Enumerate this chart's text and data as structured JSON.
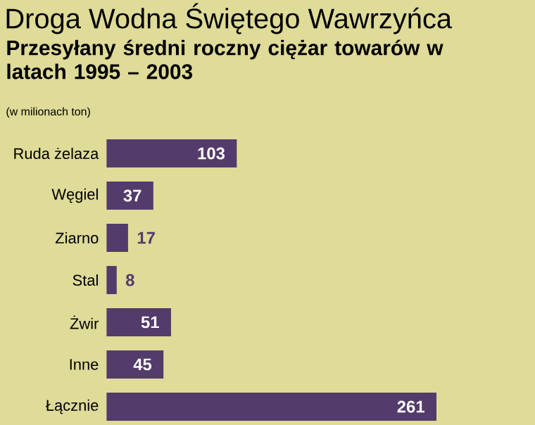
{
  "chart_data": {
    "type": "bar",
    "orientation": "horizontal",
    "title": "Droga Wodna Świętego Wawrzyńca",
    "subtitle": "Przesyłany średni roczny ciężar towarów w latach 1995 – 2003",
    "annotations": [
      "(w milionach ton)"
    ],
    "categories": [
      "Ruda żelaza",
      "Węgiel",
      "Ziarno",
      "Stal",
      "Żwir",
      "Inne",
      "Łącznie"
    ],
    "values": [
      103,
      37,
      17,
      8,
      51,
      45,
      261
    ],
    "color": "#533b6b",
    "data_labels": true
  }
}
